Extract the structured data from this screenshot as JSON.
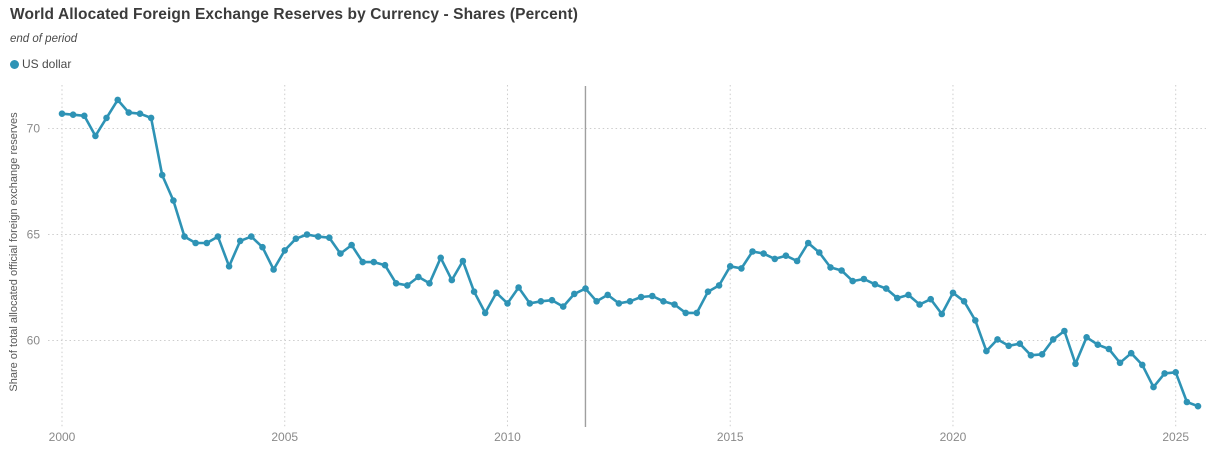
{
  "header": {
    "title": "World Allocated Foreign Exchange Reserves by Currency - Shares (Percent)",
    "subtitle": "end of period"
  },
  "legend": {
    "series_label": "US dollar",
    "series_color": "#2e93b5"
  },
  "colors": {
    "accent": "#2e93b5",
    "gridline": "#cdcdcd",
    "ruler": "#9f9f9f",
    "tick_text": "#8a8a8a",
    "title_text": "#3b3b3b",
    "background": "#ffffff"
  },
  "chart_data": {
    "type": "line",
    "title": "World Allocated Foreign Exchange Reserves by Currency - Shares (Percent)",
    "subtitle": "end of period",
    "xlabel": "",
    "ylabel": "Share of total allocated official foreign exchange reserves",
    "x_ticks": [
      "2000",
      "2005",
      "2010",
      "2015",
      "2020",
      "2025"
    ],
    "y_ticks": [
      70,
      65,
      60
    ],
    "ylim": [
      55.9,
      72.1
    ],
    "grid": "dotted",
    "legend_position": "top-left",
    "ruler": {
      "quarter": "2011Q3"
    },
    "series": [
      {
        "name": "US dollar",
        "color": "#2e93b5",
        "quarters": [
          "1999Q4",
          "2000Q1",
          "2000Q2",
          "2000Q3",
          "2000Q4",
          "2001Q1",
          "2001Q2",
          "2001Q3",
          "2001Q4",
          "2002Q1",
          "2002Q2",
          "2002Q3",
          "2002Q4",
          "2003Q1",
          "2003Q2",
          "2003Q3",
          "2003Q4",
          "2004Q1",
          "2004Q2",
          "2004Q3",
          "2004Q4",
          "2005Q1",
          "2005Q2",
          "2005Q3",
          "2005Q4",
          "2006Q1",
          "2006Q2",
          "2006Q3",
          "2006Q4",
          "2007Q1",
          "2007Q2",
          "2007Q3",
          "2007Q4",
          "2008Q1",
          "2008Q2",
          "2008Q3",
          "2008Q4",
          "2009Q1",
          "2009Q2",
          "2009Q3",
          "2009Q4",
          "2010Q1",
          "2010Q2",
          "2010Q3",
          "2010Q4",
          "2011Q1",
          "2011Q2",
          "2011Q3",
          "2011Q4",
          "2012Q1",
          "2012Q2",
          "2012Q3",
          "2012Q4",
          "2013Q1",
          "2013Q2",
          "2013Q3",
          "2013Q4",
          "2014Q1",
          "2014Q2",
          "2014Q3",
          "2014Q4",
          "2015Q1",
          "2015Q2",
          "2015Q3",
          "2015Q4",
          "2016Q1",
          "2016Q2",
          "2016Q3",
          "2016Q4",
          "2017Q1",
          "2017Q2",
          "2017Q3",
          "2017Q4",
          "2018Q1",
          "2018Q2",
          "2018Q3",
          "2018Q4",
          "2019Q1",
          "2019Q2",
          "2019Q3",
          "2019Q4",
          "2020Q1",
          "2020Q2",
          "2020Q3",
          "2020Q4",
          "2021Q1",
          "2021Q2",
          "2021Q3",
          "2021Q4",
          "2022Q1",
          "2022Q2",
          "2022Q3",
          "2022Q4",
          "2023Q1",
          "2023Q2",
          "2023Q3",
          "2023Q4",
          "2024Q1",
          "2024Q2",
          "2024Q3",
          "2024Q4",
          "2025Q1",
          "2025Q2"
        ],
        "values": [
          70.7,
          70.65,
          70.6,
          69.65,
          70.5,
          71.35,
          70.75,
          70.7,
          70.5,
          67.8,
          66.6,
          64.9,
          64.6,
          64.6,
          64.9,
          63.5,
          64.7,
          64.9,
          64.4,
          63.35,
          64.25,
          64.8,
          65.0,
          64.9,
          64.85,
          64.1,
          64.5,
          63.7,
          63.7,
          63.55,
          62.7,
          62.6,
          63.0,
          62.7,
          63.9,
          62.85,
          63.75,
          62.3,
          61.3,
          62.25,
          61.75,
          62.5,
          61.75,
          61.85,
          61.9,
          61.6,
          62.2,
          62.45,
          61.85,
          62.15,
          61.75,
          61.85,
          62.05,
          62.1,
          61.85,
          61.7,
          61.3,
          61.3,
          62.3,
          62.6,
          63.5,
          63.4,
          64.2,
          64.1,
          63.85,
          64.0,
          63.75,
          64.6,
          64.15,
          63.45,
          63.3,
          62.8,
          62.9,
          62.65,
          62.45,
          62.0,
          62.15,
          61.7,
          61.95,
          61.25,
          62.25,
          61.85,
          60.95,
          59.5,
          60.05,
          59.75,
          59.85,
          59.3,
          59.35,
          60.05,
          60.45,
          58.9,
          60.15,
          59.8,
          59.6,
          58.95,
          59.4,
          58.85,
          57.8,
          58.45,
          58.5,
          57.1,
          56.9
        ]
      }
    ]
  }
}
